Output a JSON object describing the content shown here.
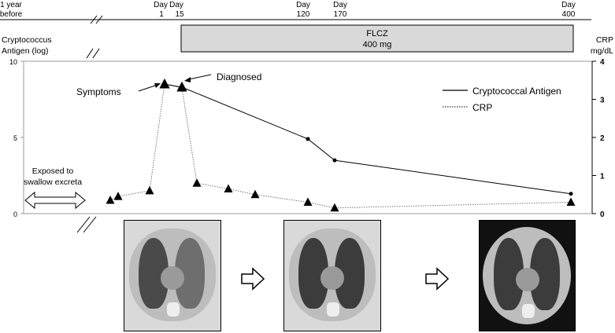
{
  "timeline": {
    "labels": [
      {
        "line1": "1 year",
        "line2": "before"
      },
      {
        "line1": "Day",
        "line2": "1"
      },
      {
        "line1": "Day",
        "line2": "15"
      },
      {
        "line1": "Day",
        "line2": "120"
      },
      {
        "line1": "Day",
        "line2": "170"
      },
      {
        "line1": "Day",
        "line2": "400"
      }
    ]
  },
  "treatment": {
    "line1": "FLCZ",
    "line2": "400 mg"
  },
  "left_axis_title": {
    "line1": "Cryptococcus",
    "line2": "Antigen (log)"
  },
  "right_axis_title": {
    "line1": "CRP",
    "line2": "mg/dL"
  },
  "annotations": {
    "symptoms": "Symptoms",
    "diagnosed": "Diagnosed",
    "exposed_line1": "Exposed to",
    "exposed_line2": "swallow excreta"
  },
  "chart_data": {
    "type": "line",
    "x_categories": [
      "1 year before",
      "Day 1",
      "Day 15",
      "Day 120",
      "Day 170",
      "Day 400"
    ],
    "y_left": {
      "label": "Cryptococcus Antigen (log)",
      "ticks": [
        0,
        5,
        10
      ],
      "range": [
        0,
        10
      ]
    },
    "y_right": {
      "label": "CRP mg/dL",
      "ticks": [
        0,
        1,
        2,
        3,
        4
      ],
      "range": [
        0,
        4
      ]
    },
    "legend": {
      "position": "top-right"
    },
    "series": [
      {
        "name": "Cryptococcal Antigen",
        "style": "solid",
        "marker": "triangle/circle",
        "points": [
          {
            "x": "Day 1",
            "y": 8.5
          },
          {
            "x": "Day 15",
            "y": 8.3
          },
          {
            "x": "Day 120",
            "y": 4.9
          },
          {
            "x": "Day 170",
            "y": 3.5
          },
          {
            "x": "Day 400",
            "y": 1.3
          }
        ]
      },
      {
        "name": "CRP",
        "style": "dotted",
        "marker": "triangle",
        "points": [
          {
            "x": "1 year before",
            "y": 0.35
          },
          {
            "x": "1 year before",
            "y": 0.45
          },
          {
            "x": "Day 1",
            "y": 0.6
          },
          {
            "x": "Day 1",
            "y": 3.4
          },
          {
            "x": "Day 15",
            "y": 3.3
          },
          {
            "x": "Day 15",
            "y": 0.8
          },
          {
            "x": "Day 15",
            "y": 0.65
          },
          {
            "x": "Day 120",
            "y": 0.5
          },
          {
            "x": "Day 120",
            "y": 0.3
          },
          {
            "x": "Day 170",
            "y": 0.15
          },
          {
            "x": "Day 400",
            "y": 0.3
          }
        ]
      }
    ]
  },
  "ct_images": [
    {
      "name": "ct-scan-day1"
    },
    {
      "name": "ct-scan-day170"
    },
    {
      "name": "ct-scan-day400"
    }
  ]
}
